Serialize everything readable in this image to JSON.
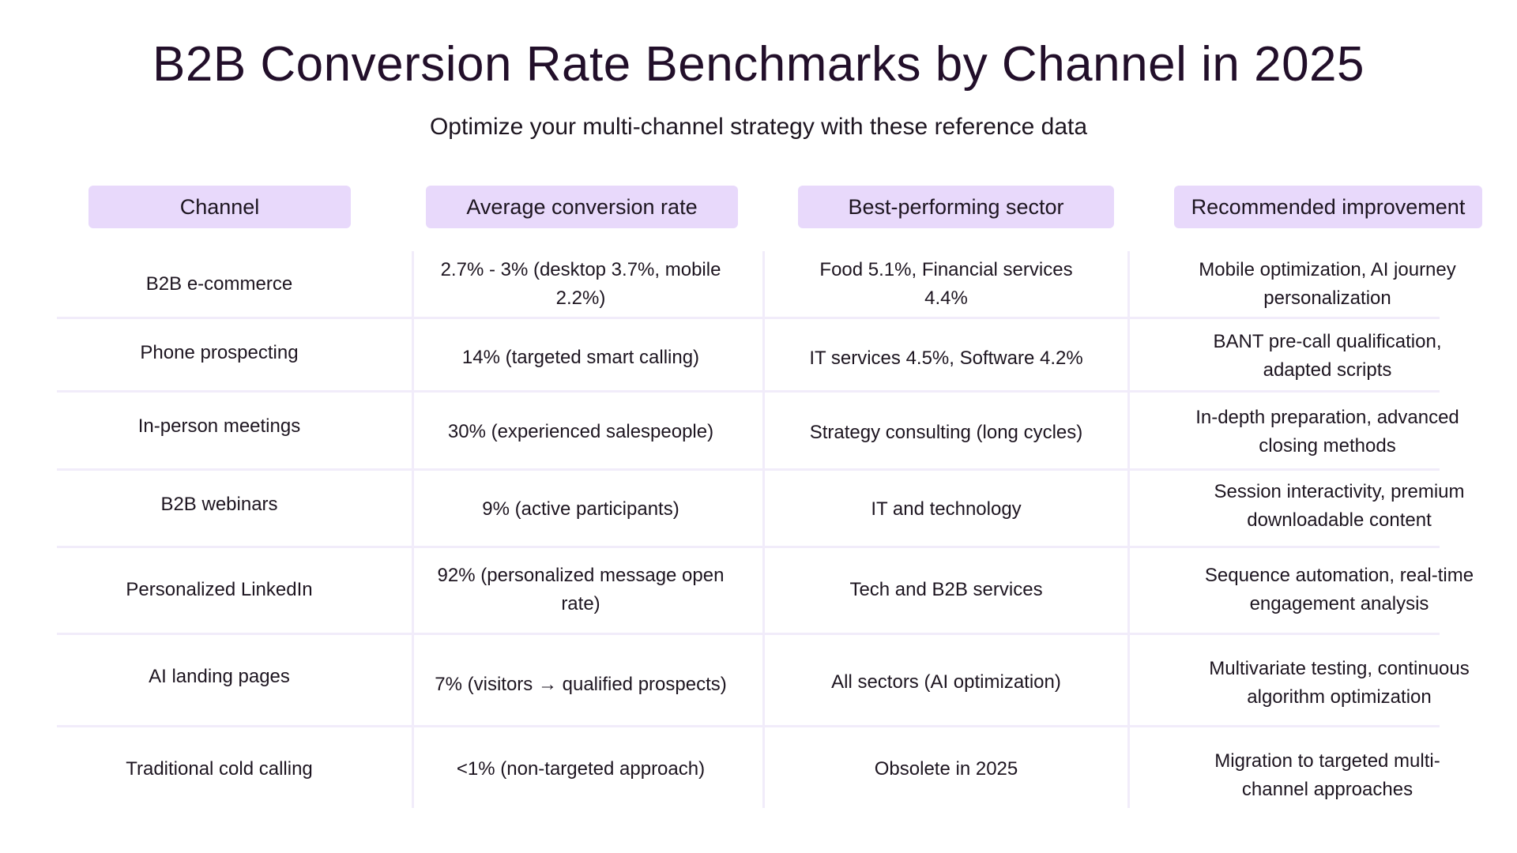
{
  "title": "B2B Conversion Rate Benchmarks by Channel in 2025",
  "subtitle": "Optimize your multi-channel strategy with these reference data",
  "table": {
    "headers": [
      "Channel",
      "Average conversion rate",
      "Best-performing sector",
      "Recommended improvement"
    ],
    "rows": [
      [
        "B2B e-commerce",
        "2.7% - 3% (desktop 3.7%, mobile 2.2%)",
        "Food 5.1%, Financial services 4.4%",
        "Mobile optimization, AI journey personalization"
      ],
      [
        "Phone prospecting",
        "14% (targeted smart calling)",
        "IT services 4.5%, Software 4.2%",
        "BANT pre-call qualification, adapted scripts"
      ],
      [
        "In-person meetings",
        "30% (experienced salespeople)",
        "Strategy consulting (long cycles)",
        "In-depth preparation, advanced closing methods"
      ],
      [
        "B2B webinars",
        "9% (active participants)",
        "IT and technology",
        "Session interactivity, premium downloadable content"
      ],
      [
        "Personalized LinkedIn",
        "92% (personalized message open rate)",
        "Tech and B2B services",
        "Sequence automation, real-time engagement analysis"
      ],
      [
        "AI landing pages",
        "7% (visitors → qualified prospects)",
        "All sectors (AI optimization)",
        "Multivariate testing, continuous algorithm optimization"
      ],
      [
        "Traditional cold calling",
        "<1% (non-targeted approach)",
        "Obsolete in 2025",
        "Migration to targeted multi-channel approaches"
      ]
    ]
  }
}
